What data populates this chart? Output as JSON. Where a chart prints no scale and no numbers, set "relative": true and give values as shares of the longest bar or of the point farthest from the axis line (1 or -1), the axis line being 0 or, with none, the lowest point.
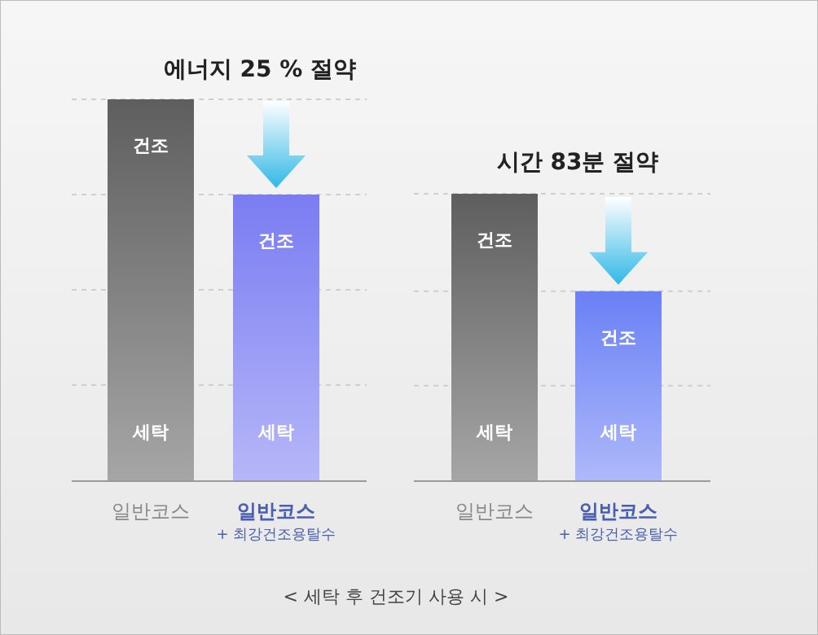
{
  "chart_data": [
    {
      "type": "bar",
      "title": "에너지 25 % 절약",
      "categories": [
        "일반코스",
        "일반코스\n+ 최강건조용탈수"
      ],
      "values": [
        1,
        0.75
      ],
      "colors": [
        "#5e5e5e",
        "#7a7cf2"
      ],
      "relative": true,
      "annotations": [
        "건조",
        "세탁",
        "건조",
        "세탁"
      ],
      "ref_lines": [
        {
          "axis": "y",
          "value": 0.25,
          "color": "#cfcfcf",
          "line_style": "dashed"
        },
        {
          "axis": "y",
          "value": 0.5,
          "color": "#cfcfcf",
          "line_style": "dashed"
        },
        {
          "axis": "y",
          "value": 0.75,
          "color": "#cfcfcf",
          "line_style": "dashed"
        },
        {
          "axis": "y",
          "value": 1,
          "color": "#cfcfcf",
          "line_style": "dashed"
        }
      ]
    },
    {
      "type": "bar",
      "title": "시간 83분 절약",
      "categories": [
        "일반코스",
        "일반코스\n+ 최강건조용탈수"
      ],
      "values": [
        1,
        0.66
      ],
      "colors": [
        "#5e5e5e",
        "#6a80f5"
      ],
      "relative": true,
      "annotations": [
        "건조",
        "세탁",
        "건조",
        "세탁",
        "< 세탁 후 건조기 사용 시 >"
      ],
      "ref_lines": [
        {
          "axis": "y",
          "value": 0.33,
          "color": "#cfcfcf",
          "line_style": "dashed"
        },
        {
          "axis": "y",
          "value": 0.66,
          "color": "#cfcfcf",
          "line_style": "dashed"
        },
        {
          "axis": "y",
          "value": 1,
          "color": "#cfcfcf",
          "line_style": "dashed"
        }
      ]
    }
  ]
}
